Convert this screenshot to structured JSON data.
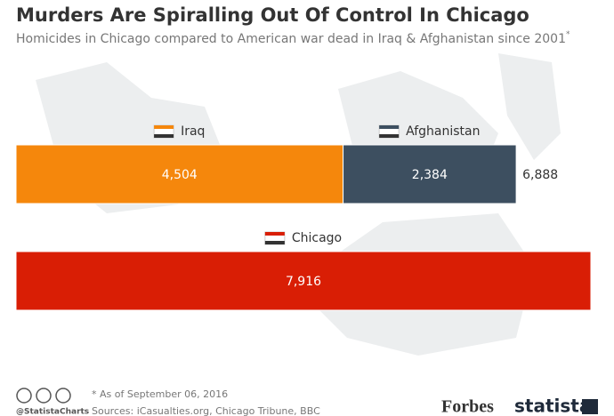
{
  "chart_data": {
    "type": "stacked-bar",
    "title": "Murders Are Spiralling Out Of Control In Chicago",
    "subtitle": "Homicides in Chicago compared to American war dead in Iraq & Afghanistan since 2001",
    "subtitle_mark": "*",
    "rows": [
      {
        "segments": [
          {
            "name": "Iraq",
            "value": 4504,
            "value_label": "4,504",
            "color": "#f5870c"
          },
          {
            "name": "Afghanistan",
            "value": 2384,
            "value_label": "2,384",
            "color": "#3d4f60"
          }
        ],
        "total": 6888,
        "total_label": "6,888"
      },
      {
        "segments": [
          {
            "name": "Chicago",
            "value": 7916,
            "value_label": "7,916",
            "color": "#d91e05"
          }
        ]
      }
    ],
    "footnote": "* As of September 06, 2016",
    "handle": "@StatistaCharts",
    "sources": "Sources: iCasualties.org, Chicago Tribune, BBC",
    "brand_1": "Forbes",
    "brand_2": "statista"
  }
}
